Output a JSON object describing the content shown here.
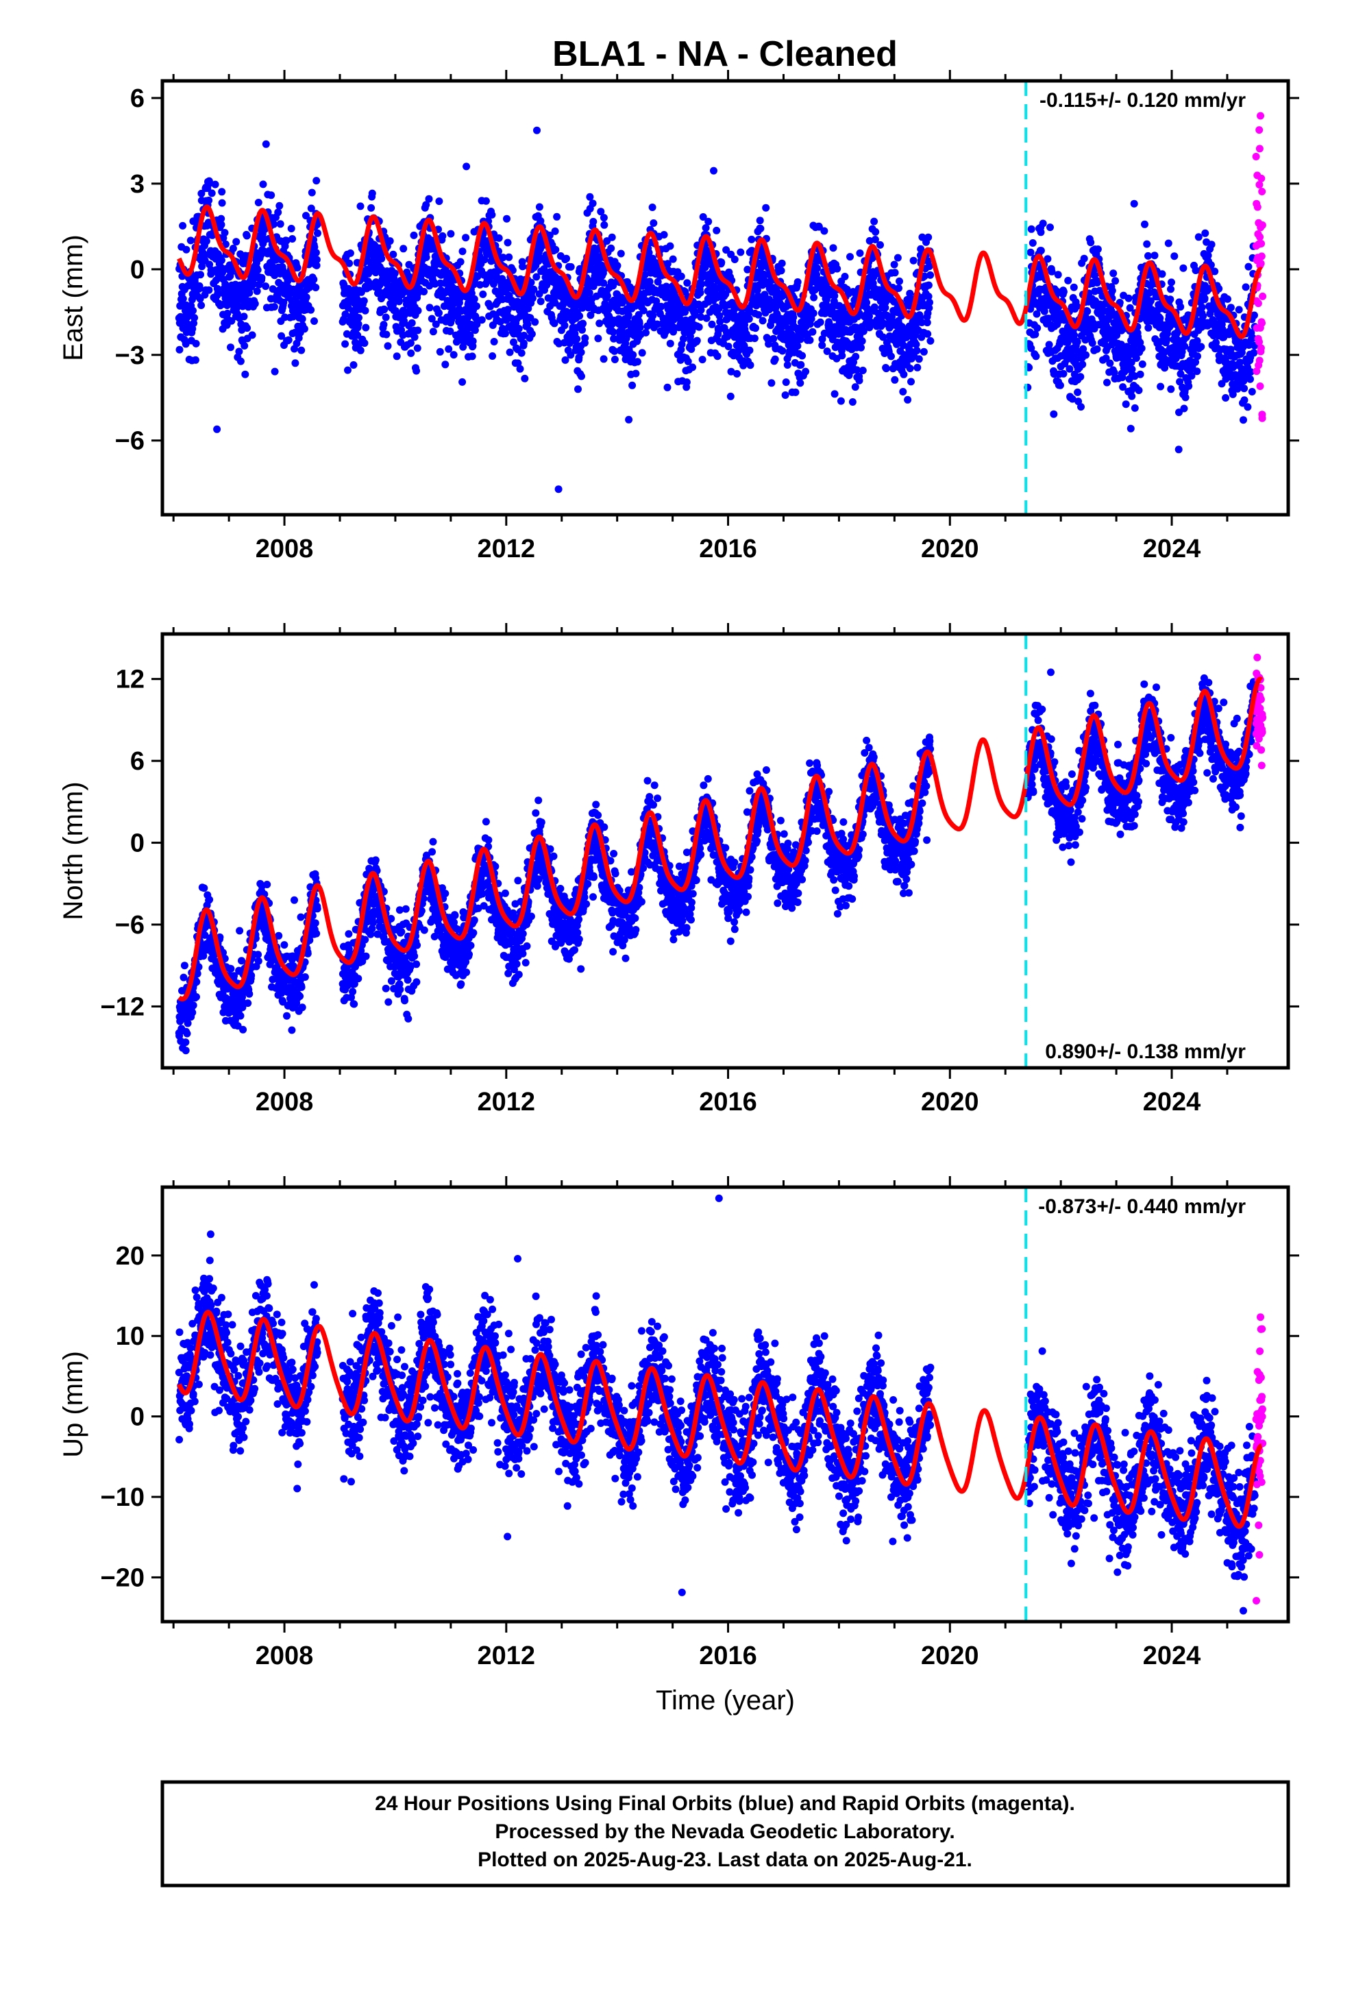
{
  "title": "BLA1  - NA - Cleaned",
  "colors": {
    "final_orbits": "#0000ff",
    "rapid_orbits": "#ff00ff",
    "model_fit": "#ff0000",
    "event_line": "#00e5ee",
    "frame": "#000000"
  },
  "chart_data": [
    {
      "type": "scatter",
      "ylabel": "East (mm)",
      "xlim": [
        2005.8,
        2026.1
      ],
      "ylim": [
        -8.6,
        6.6
      ],
      "yticks": [
        6,
        3,
        0,
        -3,
        -6
      ],
      "xticks": [
        2008,
        2012,
        2016,
        2020,
        2024
      ],
      "rate_text": "-0.115+/- 0.120 mm/yr",
      "rate_position": "top-right",
      "event_line_x": 2021.37,
      "series": [
        {
          "name": "Final Orbits (blue)",
          "style": "points",
          "color": "#0000ff",
          "model": {
            "start": 2006.1,
            "end": 2025.5,
            "offset": 0.0,
            "trend_mm_per_yr": -0.115,
            "annual_amp": 1.0,
            "annual_phase": 0.6,
            "semiannual_amp": 0.4,
            "noise_sd": 1.0,
            "gap": [
              2008.6,
              2009.05
            ],
            "gap2": [
              2019.65,
              2021.4
            ],
            "seed": 11
          }
        },
        {
          "name": "Rapid Orbits (magenta)",
          "style": "points",
          "color": "#ff00ff",
          "model": {
            "start": 2025.52,
            "end": 2025.64,
            "offset": 0.3,
            "noise_sd": 2.6,
            "seed": 12
          }
        },
        {
          "name": "Model fit",
          "style": "line",
          "color": "#ff0000",
          "model": {
            "start": 2006.1,
            "end": 2025.62,
            "offset": 0.95,
            "trend_mm_per_yr": -0.115,
            "annual_amp": 1.0,
            "annual_phase": 0.6,
            "semiannual_amp": 0.4
          }
        }
      ]
    },
    {
      "type": "scatter",
      "ylabel": "North (mm)",
      "xlim": [
        2005.8,
        2026.1
      ],
      "ylim": [
        -16.5,
        15.3
      ],
      "yticks": [
        12,
        6,
        0,
        -6,
        -12
      ],
      "xticks": [
        2008,
        2012,
        2016,
        2020,
        2024
      ],
      "rate_text": "0.890+/- 0.138 mm/yr",
      "rate_position": "bottom-right",
      "event_line_x": 2021.37,
      "series": [
        {
          "name": "Final Orbits (blue)",
          "style": "points",
          "color": "#0000ff",
          "model": {
            "start": 2006.1,
            "end": 2025.5,
            "offset": -10.0,
            "trend_mm_per_yr": 0.89,
            "annual_amp": 3.0,
            "annual_phase": 0.55,
            "semiannual_amp": 0.6,
            "noise_sd": 1.3,
            "gap": [
              2008.6,
              2009.05
            ],
            "gap2": [
              2019.65,
              2021.4
            ],
            "seed": 21
          }
        },
        {
          "name": "Rapid Orbits (magenta)",
          "style": "points",
          "color": "#ff00ff",
          "model": {
            "start": 2025.52,
            "end": 2025.64,
            "offset": 9.5,
            "noise_sd": 1.3,
            "seed": 22
          }
        },
        {
          "name": "Model fit",
          "style": "line",
          "color": "#ff0000",
          "model": {
            "start": 2006.1,
            "end": 2025.62,
            "offset": -9.0,
            "trend_mm_per_yr": 0.89,
            "annual_amp": 3.0,
            "annual_phase": 0.55,
            "semiannual_amp": 0.6
          }
        }
      ]
    },
    {
      "type": "scatter",
      "ylabel": "Up (mm)",
      "xlim": [
        2005.8,
        2026.1
      ],
      "ylim": [
        -25.5,
        28.5
      ],
      "yticks": [
        20,
        10,
        0,
        -10,
        -20
      ],
      "xticks": [
        2008,
        2012,
        2016,
        2020,
        2024
      ],
      "xlabel": "Time (year)",
      "rate_text": "-0.873+/- 0.440 mm/yr",
      "rate_position": "top-right",
      "event_line_x": 2021.37,
      "series": [
        {
          "name": "Final Orbits (blue)",
          "style": "points",
          "color": "#0000ff",
          "model": {
            "start": 2006.1,
            "end": 2025.5,
            "offset": 8.0,
            "trend_mm_per_yr": -0.873,
            "annual_amp": 5.0,
            "annual_phase": 0.6,
            "semiannual_amp": 0.8,
            "noise_sd": 3.2,
            "gap": [
              2008.6,
              2009.05
            ],
            "gap2": [
              2019.65,
              2021.4
            ],
            "seed": 31
          }
        },
        {
          "name": "Rapid Orbits (magenta)",
          "style": "points",
          "color": "#ff00ff",
          "model": {
            "start": 2025.52,
            "end": 2025.64,
            "offset": -3.0,
            "noise_sd": 7.0,
            "seed": 32
          }
        },
        {
          "name": "Model fit",
          "style": "line",
          "color": "#ff0000",
          "model": {
            "start": 2006.1,
            "end": 2025.62,
            "offset": 8.0,
            "trend_mm_per_yr": -0.873,
            "annual_amp": 5.0,
            "annual_phase": 0.6,
            "semiannual_amp": 0.8
          }
        }
      ]
    }
  ],
  "footer": {
    "line1": "24 Hour Positions Using Final Orbits (blue) and Rapid Orbits (magenta).",
    "line2": "Processed by the Nevada Geodetic Laboratory.",
    "line3": "Plotted on 2025-Aug-23. Last data on 2025-Aug-21."
  }
}
